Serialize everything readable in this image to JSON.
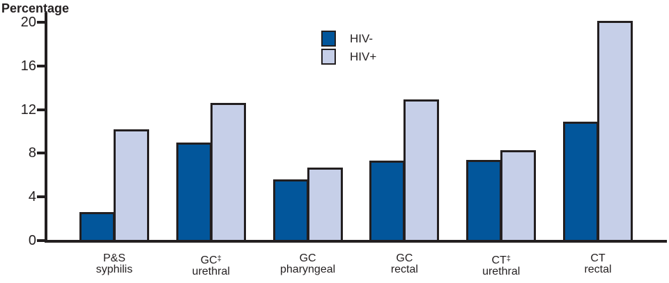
{
  "chart_data": {
    "type": "bar",
    "title": "",
    "ylabel": "Percentage",
    "xlabel": "",
    "ylim": [
      0,
      20
    ],
    "yticks": [
      0,
      4,
      8,
      12,
      16,
      20
    ],
    "grid": false,
    "legend_position": "top-center",
    "dagger_symbol": "‡",
    "axis_color": "#231f20",
    "categories": [
      {
        "abbr": "P&S",
        "dagger": false,
        "site": "syphilis"
      },
      {
        "abbr": "GC",
        "dagger": true,
        "site": "urethral"
      },
      {
        "abbr": "GC",
        "dagger": false,
        "site": "pharyngeal"
      },
      {
        "abbr": "GC",
        "dagger": false,
        "site": "rectal"
      },
      {
        "abbr": "CT",
        "dagger": true,
        "site": "urethral"
      },
      {
        "abbr": "CT",
        "dagger": false,
        "site": "rectal"
      }
    ],
    "series": [
      {
        "name": "HIV-",
        "color": "#02569b",
        "values": [
          2.6,
          9.0,
          5.6,
          7.3,
          7.4,
          10.9
        ]
      },
      {
        "name": "HIV+",
        "color": "#c6cfe8",
        "values": [
          10.2,
          12.6,
          6.7,
          12.9,
          8.3,
          20.1
        ]
      }
    ]
  }
}
